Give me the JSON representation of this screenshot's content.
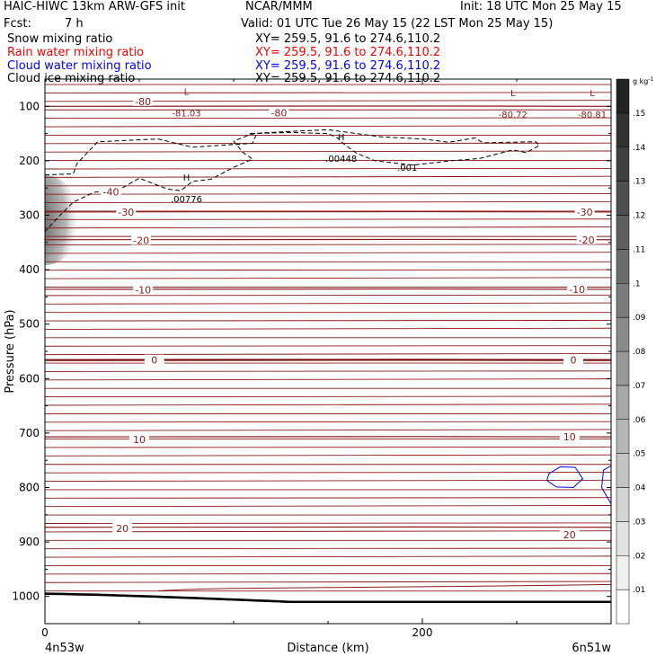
{
  "header": {
    "title_left": "HAIC-HIWC 13km ARW-GFS init",
    "center_org": "NCAR/MMM",
    "init": "Init: 18 UTC Mon 25 May 15",
    "fcst_label": "Fcst:",
    "fcst_value": "7 h",
    "valid": "Valid: 01 UTC Tue 26 May 15 (22 LST Mon 25 May 15)"
  },
  "fields": [
    {
      "name": "Snow mixing ratio",
      "xy": "XY= 259.5, 91.6 to 274.6,110.2",
      "color": "#000000"
    },
    {
      "name": "Rain water mixing ratio",
      "xy": "XY= 259.5, 91.6 to 274.6,110.2",
      "color": "#ff0000"
    },
    {
      "name": "Cloud water mixing ratio",
      "xy": "XY= 259.5, 91.6 to 274.6,110.2",
      "color": "#0000ff"
    },
    {
      "name": "Cloud ice mixing ratio",
      "xy": "XY= 259.5, 91.6 to 274.6,110.2",
      "color": "#000000"
    }
  ],
  "chart_data": {
    "type": "cross-section contour",
    "xlabel": "Distance (km)",
    "ylabel": "Pressure (hPa)",
    "xlim": [
      0,
      300
    ],
    "ylim": [
      1050,
      50
    ],
    "x_ticks": [
      0,
      200
    ],
    "y_ticks": [
      100,
      200,
      300,
      400,
      500,
      600,
      700,
      800,
      900,
      1000
    ],
    "x_end_labels": {
      "left": "4n53w",
      "right": "6n51w"
    },
    "temperature_contours": [
      {
        "value": -80,
        "p": 100
      },
      {
        "value": -30,
        "p": 294
      },
      {
        "value": -20,
        "p": 345
      },
      {
        "value": -10,
        "p": 436
      },
      {
        "value": 0,
        "p": 566
      },
      {
        "value": 10,
        "p": 707
      },
      {
        "value": 20,
        "p": 873
      }
    ],
    "temperature_contour_labels": [
      {
        "text": "-80",
        "x": 52,
        "p": 91
      },
      {
        "text": "-80",
        "x": 124,
        "p": 112
      },
      {
        "text": "-30",
        "x": 43,
        "p": 294
      },
      {
        "text": "-30",
        "x": 286,
        "p": 294
      },
      {
        "text": "-20",
        "x": 51,
        "p": 346
      },
      {
        "text": "-20",
        "x": 287,
        "p": 345
      },
      {
        "text": "-10",
        "x": 52,
        "p": 437
      },
      {
        "text": "-10",
        "x": 282,
        "p": 436
      },
      {
        "text": "0",
        "x": 58,
        "p": 566
      },
      {
        "text": "0",
        "x": 280,
        "p": 566
      },
      {
        "text": "10",
        "x": 50,
        "p": 712
      },
      {
        "text": "10",
        "x": 278,
        "p": 707
      },
      {
        "text": "20",
        "x": 41,
        "p": 875
      },
      {
        "text": "20",
        "x": 278,
        "p": 887
      },
      {
        "text": "-40",
        "x": 35,
        "p": 257
      }
    ],
    "extrema_labels": [
      {
        "mark": "L",
        "value": "-81.03",
        "x": 75,
        "p": 89
      },
      {
        "mark": "L",
        "value": "-80.72",
        "x": 248,
        "p": 91
      },
      {
        "mark": "L",
        "value": "-80.81",
        "x": 290,
        "p": 91
      },
      {
        "mark": "H",
        "value": ".00448",
        "x": 157,
        "p": 172
      },
      {
        "mark": "H",
        "value": ".00776",
        "x": 75,
        "p": 246
      }
    ],
    "cloud_ice_contour_label": {
      "text": ".001",
      "x": 192,
      "p": 212
    },
    "colorbar": {
      "unit": "g kg",
      "unit_exp": "-1",
      "levels": [
        "0",
        ".01",
        ".02",
        ".03",
        ".04",
        ".05",
        ".06",
        ".07",
        ".08",
        ".09",
        ".1",
        ".11",
        ".12",
        ".13",
        ".14",
        ".15"
      ],
      "shown_labels": [
        ".01",
        ".02",
        ".03",
        ".04",
        ".05",
        ".06",
        ".07",
        ".08",
        ".09",
        ".1",
        ".11",
        ".12",
        ".13",
        ".14",
        ".15"
      ]
    },
    "colors": {
      "temperature": "#8b1a1a",
      "zero_isotherm": "#7a0c0c",
      "cloud_water": "#0000ff",
      "cloud_ice": "#000000",
      "ground": "#000000"
    }
  }
}
